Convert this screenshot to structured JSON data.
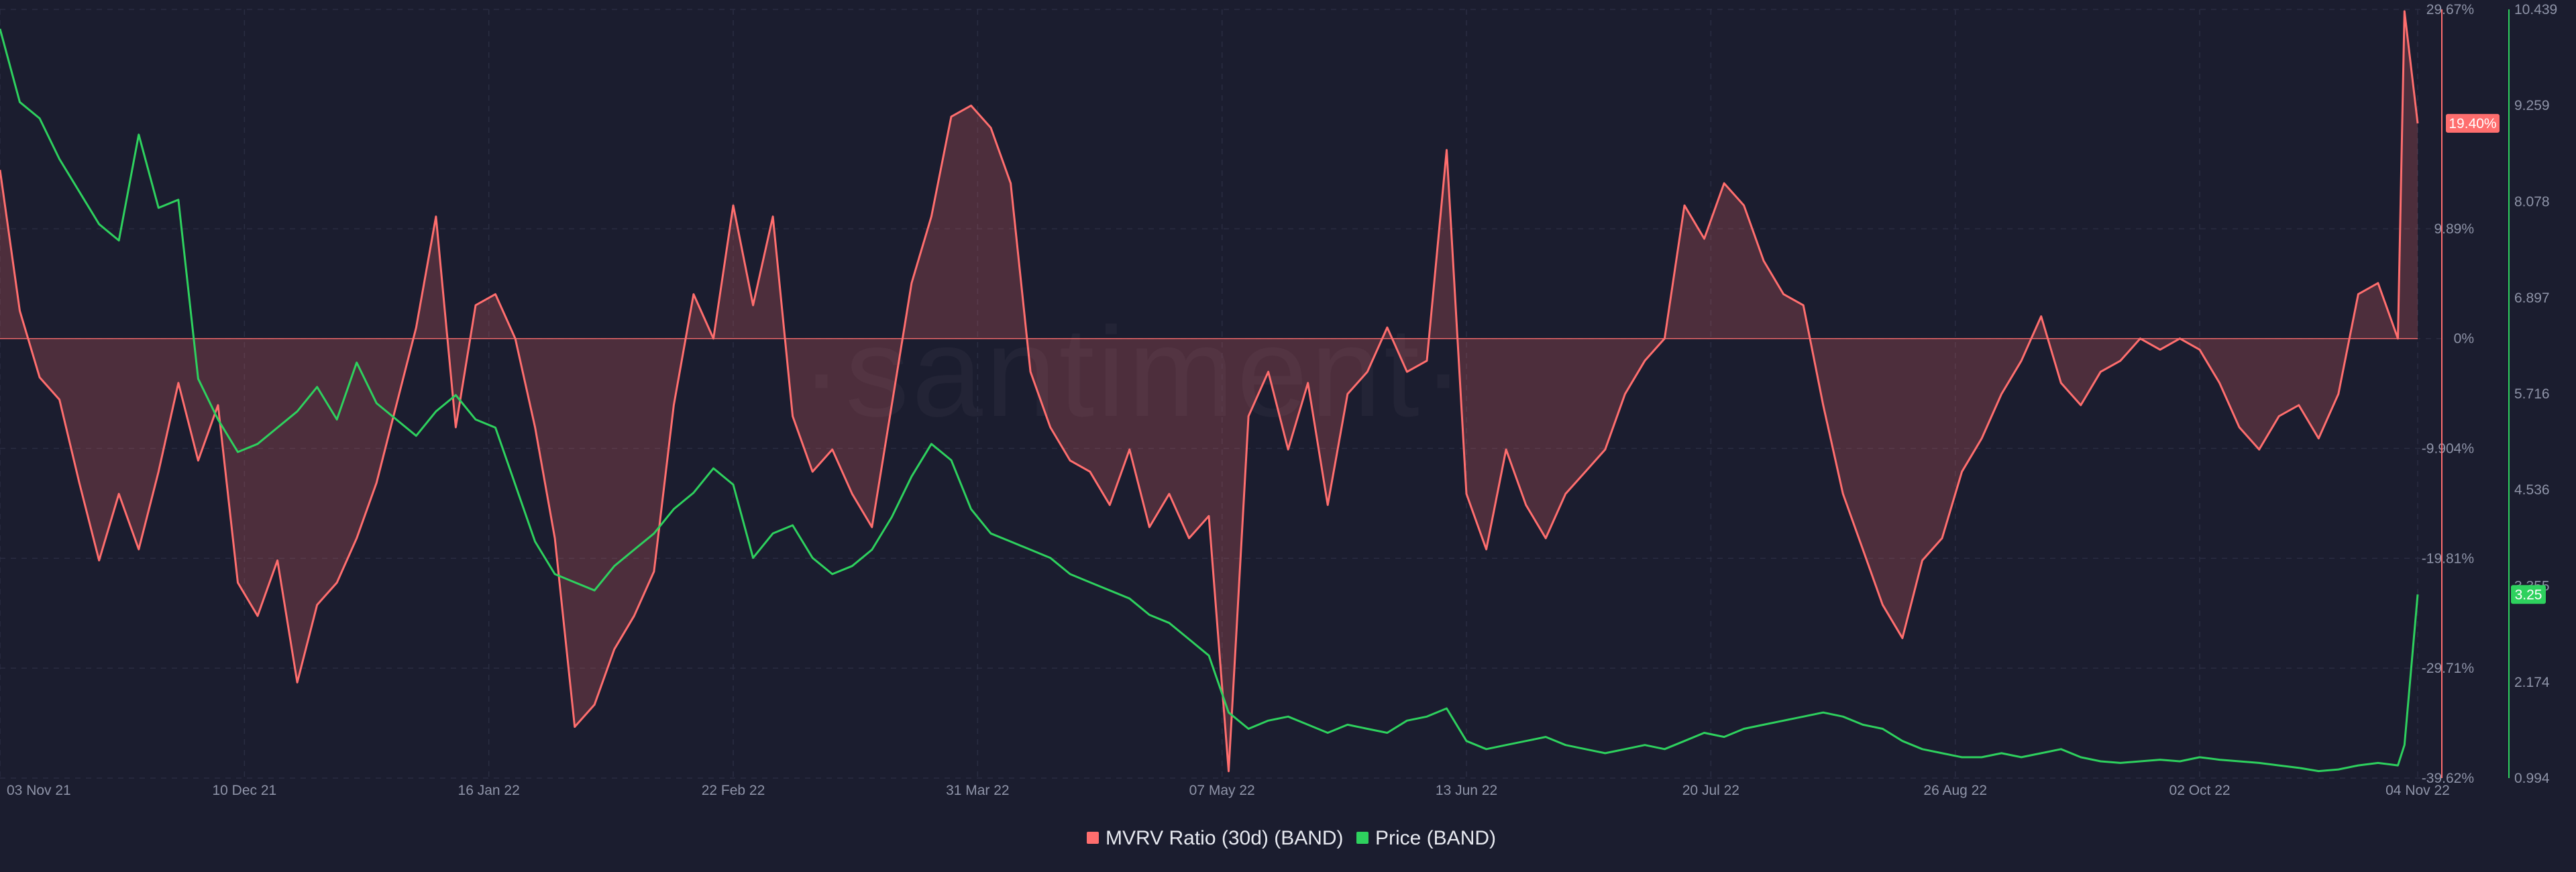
{
  "watermark": "·santiment·",
  "colors": {
    "background": "#1b1d2f",
    "mvrv": "#ff6e6e",
    "price": "#2ed15e",
    "grid": "#2a2d42",
    "axis_text": "#8f94a8"
  },
  "chart_data": {
    "type": "line",
    "x_ticks": [
      "03 Nov 21",
      "10 Dec 21",
      "16 Jan 22",
      "22 Feb 22",
      "31 Mar 22",
      "07 May 22",
      "13 Jun 22",
      "20 Jul 22",
      "26 Aug 22",
      "02 Oct 22",
      "04 Nov 22"
    ],
    "mvrv_axis": {
      "ticks": [
        "29.67%",
        "19.40%",
        "9.89%",
        "0%",
        "-9.904%",
        "-19.81%",
        "-29.71%",
        "-39.62%"
      ],
      "range": [
        -39.62,
        29.67
      ],
      "last_value_label": "19.40%",
      "last_value": 19.4
    },
    "price_axis": {
      "ticks": [
        "10.439",
        "9.259",
        "8.078",
        "6.897",
        "5.716",
        "4.536",
        "3.355",
        "2.174",
        "0.994"
      ],
      "range": [
        0.994,
        10.439
      ],
      "last_value_label": "3.25",
      "last_value": 3.25
    },
    "legend": [
      "MVRV Ratio (30d) (BAND)",
      "Price (BAND)"
    ],
    "series": [
      {
        "name": "MVRV Ratio (30d) (BAND)",
        "type": "area",
        "color": "#ff6e6e",
        "points": [
          [
            "03 Nov 21",
            15.2
          ],
          [
            "06 Nov 21",
            2.5
          ],
          [
            "09 Nov 21",
            -3.5
          ],
          [
            "12 Nov 21",
            -5.5
          ],
          [
            "15 Nov 21",
            -13
          ],
          [
            "18 Nov 21",
            -20
          ],
          [
            "21 Nov 21",
            -14
          ],
          [
            "24 Nov 21",
            -19
          ],
          [
            "27 Nov 21",
            -12
          ],
          [
            "30 Nov 21",
            -4
          ],
          [
            "03 Dec 21",
            -11
          ],
          [
            "06 Dec 21",
            -6
          ],
          [
            "09 Dec 21",
            -22
          ],
          [
            "12 Dec 21",
            -25
          ],
          [
            "15 Dec 21",
            -20
          ],
          [
            "18 Dec 21",
            -31
          ],
          [
            "21 Dec 21",
            -24
          ],
          [
            "24 Dec 21",
            -22
          ],
          [
            "27 Dec 21",
            -18
          ],
          [
            "30 Dec 21",
            -13
          ],
          [
            "02 Jan 22",
            -6
          ],
          [
            "05 Jan 22",
            1
          ],
          [
            "08 Jan 22",
            11
          ],
          [
            "11 Jan 22",
            -8
          ],
          [
            "14 Jan 22",
            3
          ],
          [
            "17 Jan 22",
            4
          ],
          [
            "20 Jan 22",
            0
          ],
          [
            "23 Jan 22",
            -8
          ],
          [
            "26 Jan 22",
            -18
          ],
          [
            "29 Jan 22",
            -35
          ],
          [
            "01 Feb 22",
            -33
          ],
          [
            "04 Feb 22",
            -28
          ],
          [
            "07 Feb 22",
            -25
          ],
          [
            "10 Feb 22",
            -21
          ],
          [
            "13 Feb 22",
            -6
          ],
          [
            "16 Feb 22",
            4
          ],
          [
            "19 Feb 22",
            0
          ],
          [
            "22 Feb 22",
            12
          ],
          [
            "25 Feb 22",
            3
          ],
          [
            "28 Feb 22",
            11
          ],
          [
            "03 Mar 22",
            -7
          ],
          [
            "06 Mar 22",
            -12
          ],
          [
            "09 Mar 22",
            -10
          ],
          [
            "12 Mar 22",
            -14
          ],
          [
            "15 Mar 22",
            -17
          ],
          [
            "18 Mar 22",
            -6
          ],
          [
            "21 Mar 22",
            5
          ],
          [
            "24 Mar 22",
            11
          ],
          [
            "27 Mar 22",
            20
          ],
          [
            "30 Mar 22",
            21
          ],
          [
            "02 Apr 22",
            19
          ],
          [
            "05 Apr 22",
            14
          ],
          [
            "08 Apr 22",
            -3
          ],
          [
            "11 Apr 22",
            -8
          ],
          [
            "14 Apr 22",
            -11
          ],
          [
            "17 Apr 22",
            -12
          ],
          [
            "20 Apr 22",
            -15
          ],
          [
            "23 Apr 22",
            -10
          ],
          [
            "26 Apr 22",
            -17
          ],
          [
            "29 Apr 22",
            -14
          ],
          [
            "02 May 22",
            -18
          ],
          [
            "05 May 22",
            -16
          ],
          [
            "08 May 22",
            -39
          ],
          [
            "11 May 22",
            -7
          ],
          [
            "14 May 22",
            -3
          ],
          [
            "17 May 22",
            -10
          ],
          [
            "20 May 22",
            -4
          ],
          [
            "23 May 22",
            -15
          ],
          [
            "26 May 22",
            -5
          ],
          [
            "29 May 22",
            -3
          ],
          [
            "01 Jun 22",
            1
          ],
          [
            "04 Jun 22",
            -3
          ],
          [
            "07 Jun 22",
            -2
          ],
          [
            "10 Jun 22",
            17
          ],
          [
            "13 Jun 22",
            -14
          ],
          [
            "16 Jun 22",
            -19
          ],
          [
            "19 Jun 22",
            -10
          ],
          [
            "22 Jun 22",
            -15
          ],
          [
            "25 Jun 22",
            -18
          ],
          [
            "28 Jun 22",
            -14
          ],
          [
            "01 Jul 22",
            -12
          ],
          [
            "04 Jul 22",
            -10
          ],
          [
            "07 Jul 22",
            -5
          ],
          [
            "10 Jul 22",
            -2
          ],
          [
            "13 Jul 22",
            0
          ],
          [
            "16 Jul 22",
            12
          ],
          [
            "19 Jul 22",
            9
          ],
          [
            "22 Jul 22",
            14
          ],
          [
            "25 Jul 22",
            12
          ],
          [
            "28 Jul 22",
            7
          ],
          [
            "31 Jul 22",
            4
          ],
          [
            "03 Aug 22",
            3
          ],
          [
            "06 Aug 22",
            -6
          ],
          [
            "09 Aug 22",
            -14
          ],
          [
            "12 Aug 22",
            -19
          ],
          [
            "15 Aug 22",
            -24
          ],
          [
            "18 Aug 22",
            -27
          ],
          [
            "21 Aug 22",
            -20
          ],
          [
            "24 Aug 22",
            -18
          ],
          [
            "27 Aug 22",
            -12
          ],
          [
            "30 Aug 22",
            -9
          ],
          [
            "02 Sep 22",
            -5
          ],
          [
            "05 Sep 22",
            -2
          ],
          [
            "08 Sep 22",
            2
          ],
          [
            "11 Sep 22",
            -4
          ],
          [
            "14 Sep 22",
            -6
          ],
          [
            "17 Sep 22",
            -3
          ],
          [
            "20 Sep 22",
            -2
          ],
          [
            "23 Sep 22",
            0
          ],
          [
            "26 Sep 22",
            -1
          ],
          [
            "29 Sep 22",
            0
          ],
          [
            "02 Oct 22",
            -1
          ],
          [
            "05 Oct 22",
            -4
          ],
          [
            "08 Oct 22",
            -8
          ],
          [
            "11 Oct 22",
            -10
          ],
          [
            "14 Oct 22",
            -7
          ],
          [
            "17 Oct 22",
            -6
          ],
          [
            "20 Oct 22",
            -9
          ],
          [
            "23 Oct 22",
            -5
          ],
          [
            "26 Oct 22",
            4
          ],
          [
            "29 Oct 22",
            5
          ],
          [
            "01 Nov 22",
            0
          ],
          [
            "02 Nov 22",
            29.5
          ],
          [
            "04 Nov 22",
            19.4
          ]
        ]
      },
      {
        "name": "Price (BAND)",
        "type": "line",
        "color": "#2ed15e",
        "points": [
          [
            "03 Nov 21",
            10.2
          ],
          [
            "06 Nov 21",
            9.3
          ],
          [
            "09 Nov 21",
            9.1
          ],
          [
            "12 Nov 21",
            8.6
          ],
          [
            "15 Nov 21",
            8.2
          ],
          [
            "18 Nov 21",
            7.8
          ],
          [
            "21 Nov 21",
            7.6
          ],
          [
            "24 Nov 21",
            8.9
          ],
          [
            "27 Nov 21",
            8.0
          ],
          [
            "30 Nov 21",
            8.1
          ],
          [
            "03 Dec 21",
            5.9
          ],
          [
            "06 Dec 21",
            5.4
          ],
          [
            "09 Dec 21",
            5.0
          ],
          [
            "12 Dec 21",
            5.1
          ],
          [
            "15 Dec 21",
            5.3
          ],
          [
            "18 Dec 21",
            5.5
          ],
          [
            "21 Dec 21",
            5.8
          ],
          [
            "24 Dec 21",
            5.4
          ],
          [
            "27 Dec 21",
            6.1
          ],
          [
            "30 Dec 21",
            5.6
          ],
          [
            "02 Jan 22",
            5.4
          ],
          [
            "05 Jan 22",
            5.2
          ],
          [
            "08 Jan 22",
            5.5
          ],
          [
            "11 Jan 22",
            5.7
          ],
          [
            "14 Jan 22",
            5.4
          ],
          [
            "17 Jan 22",
            5.3
          ],
          [
            "20 Jan 22",
            4.6
          ],
          [
            "23 Jan 22",
            3.9
          ],
          [
            "26 Jan 22",
            3.5
          ],
          [
            "29 Jan 22",
            3.4
          ],
          [
            "01 Feb 22",
            3.3
          ],
          [
            "04 Feb 22",
            3.6
          ],
          [
            "07 Feb 22",
            3.8
          ],
          [
            "10 Feb 22",
            4.0
          ],
          [
            "13 Feb 22",
            4.3
          ],
          [
            "16 Feb 22",
            4.5
          ],
          [
            "19 Feb 22",
            4.8
          ],
          [
            "22 Feb 22",
            4.6
          ],
          [
            "25 Feb 22",
            3.7
          ],
          [
            "28 Feb 22",
            4.0
          ],
          [
            "03 Mar 22",
            4.1
          ],
          [
            "06 Mar 22",
            3.7
          ],
          [
            "09 Mar 22",
            3.5
          ],
          [
            "12 Mar 22",
            3.6
          ],
          [
            "15 Mar 22",
            3.8
          ],
          [
            "18 Mar 22",
            4.2
          ],
          [
            "21 Mar 22",
            4.7
          ],
          [
            "24 Mar 22",
            5.1
          ],
          [
            "27 Mar 22",
            4.9
          ],
          [
            "30 Mar 22",
            4.3
          ],
          [
            "02 Apr 22",
            4.0
          ],
          [
            "05 Apr 22",
            3.9
          ],
          [
            "08 Apr 22",
            3.8
          ],
          [
            "11 Apr 22",
            3.7
          ],
          [
            "14 Apr 22",
            3.5
          ],
          [
            "17 Apr 22",
            3.4
          ],
          [
            "20 Apr 22",
            3.3
          ],
          [
            "23 Apr 22",
            3.2
          ],
          [
            "26 Apr 22",
            3.0
          ],
          [
            "29 Apr 22",
            2.9
          ],
          [
            "02 May 22",
            2.7
          ],
          [
            "05 May 22",
            2.5
          ],
          [
            "08 May 22",
            1.8
          ],
          [
            "11 May 22",
            1.6
          ],
          [
            "14 May 22",
            1.7
          ],
          [
            "17 May 22",
            1.75
          ],
          [
            "20 May 22",
            1.65
          ],
          [
            "23 May 22",
            1.55
          ],
          [
            "26 May 22",
            1.65
          ],
          [
            "29 May 22",
            1.6
          ],
          [
            "01 Jun 22",
            1.55
          ],
          [
            "04 Jun 22",
            1.7
          ],
          [
            "07 Jun 22",
            1.75
          ],
          [
            "10 Jun 22",
            1.85
          ],
          [
            "13 Jun 22",
            1.45
          ],
          [
            "16 Jun 22",
            1.35
          ],
          [
            "19 Jun 22",
            1.4
          ],
          [
            "22 Jun 22",
            1.45
          ],
          [
            "25 Jun 22",
            1.5
          ],
          [
            "28 Jun 22",
            1.4
          ],
          [
            "01 Jul 22",
            1.35
          ],
          [
            "04 Jul 22",
            1.3
          ],
          [
            "07 Jul 22",
            1.35
          ],
          [
            "10 Jul 22",
            1.4
          ],
          [
            "13 Jul 22",
            1.35
          ],
          [
            "16 Jul 22",
            1.45
          ],
          [
            "19 Jul 22",
            1.55
          ],
          [
            "22 Jul 22",
            1.5
          ],
          [
            "25 Jul 22",
            1.6
          ],
          [
            "28 Jul 22",
            1.65
          ],
          [
            "31 Jul 22",
            1.7
          ],
          [
            "03 Aug 22",
            1.75
          ],
          [
            "06 Aug 22",
            1.8
          ],
          [
            "09 Aug 22",
            1.75
          ],
          [
            "12 Aug 22",
            1.65
          ],
          [
            "15 Aug 22",
            1.6
          ],
          [
            "18 Aug 22",
            1.45
          ],
          [
            "21 Aug 22",
            1.35
          ],
          [
            "24 Aug 22",
            1.3
          ],
          [
            "27 Aug 22",
            1.25
          ],
          [
            "30 Aug 22",
            1.25
          ],
          [
            "02 Sep 22",
            1.3
          ],
          [
            "05 Sep 22",
            1.25
          ],
          [
            "08 Sep 22",
            1.3
          ],
          [
            "11 Sep 22",
            1.35
          ],
          [
            "14 Sep 22",
            1.25
          ],
          [
            "17 Sep 22",
            1.2
          ],
          [
            "20 Sep 22",
            1.18
          ],
          [
            "23 Sep 22",
            1.2
          ],
          [
            "26 Sep 22",
            1.22
          ],
          [
            "29 Sep 22",
            1.2
          ],
          [
            "02 Oct 22",
            1.25
          ],
          [
            "05 Oct 22",
            1.22
          ],
          [
            "08 Oct 22",
            1.2
          ],
          [
            "11 Oct 22",
            1.18
          ],
          [
            "14 Oct 22",
            1.15
          ],
          [
            "17 Oct 22",
            1.12
          ],
          [
            "20 Oct 22",
            1.08
          ],
          [
            "23 Oct 22",
            1.1
          ],
          [
            "26 Oct 22",
            1.15
          ],
          [
            "29 Oct 22",
            1.18
          ],
          [
            "01 Nov 22",
            1.15
          ],
          [
            "02 Nov 22",
            1.4
          ],
          [
            "04 Nov 22",
            3.25
          ]
        ]
      }
    ],
    "grid": true,
    "legend_position": "bottom-center"
  }
}
